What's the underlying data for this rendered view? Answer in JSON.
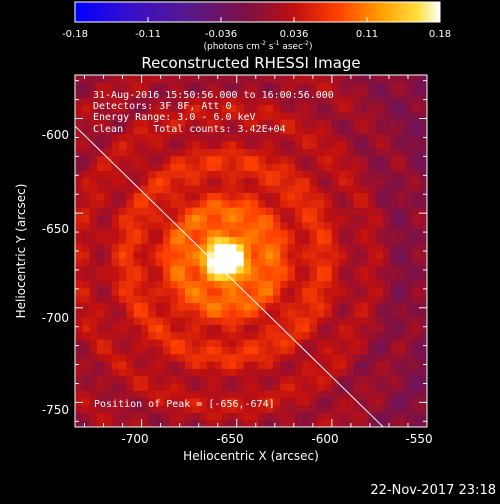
{
  "colorbar": {
    "ticks": [
      "-0.18",
      "-0.11",
      "-0.036",
      "0.036",
      "0.11",
      "0.18"
    ],
    "units_main": "(photons cm",
    "units_exp1": "-2",
    "units_mid1": " s",
    "units_exp2": "-1",
    "units_mid2": " asec",
    "units_exp3": "-2",
    "units_end": ")"
  },
  "chart_data": {
    "type": "heatmap",
    "title": "Reconstructed RHESSI Image",
    "xlabel": "Heliocentric X (arcsec)",
    "ylabel": "Heliocentric Y (arcsec)",
    "xlim": [
      -735,
      -550
    ],
    "ylim": [
      -763,
      -577
    ],
    "x_ticks": [
      -700,
      -650,
      -600,
      -550
    ],
    "y_ticks": [
      -600,
      -650,
      -700,
      -750
    ],
    "x_tick_labels": [
      "-700",
      "-650",
      "-600",
      "-550"
    ],
    "y_tick_labels": [
      "-600",
      "-650",
      "-700",
      "-750"
    ],
    "colorbar_range": [
      -0.18,
      0.18
    ],
    "peak": [
      -656,
      -674
    ],
    "limb_line": {
      "x": [
        -735,
        -573
      ],
      "y": [
        -604,
        -763
      ]
    },
    "annotations": [
      "31-Aug-2016 15:50:56.000 to 16:00:56.000",
      "Detectors: 3F 8F, Att 0",
      "Energy Range: 3.0 - 6.0 keV",
      "Clean     Total counts: 3.42E+04",
      "Position of Peak = [-656,-674]"
    ]
  },
  "footer_timestamp": "22-Nov-2017 23:18"
}
